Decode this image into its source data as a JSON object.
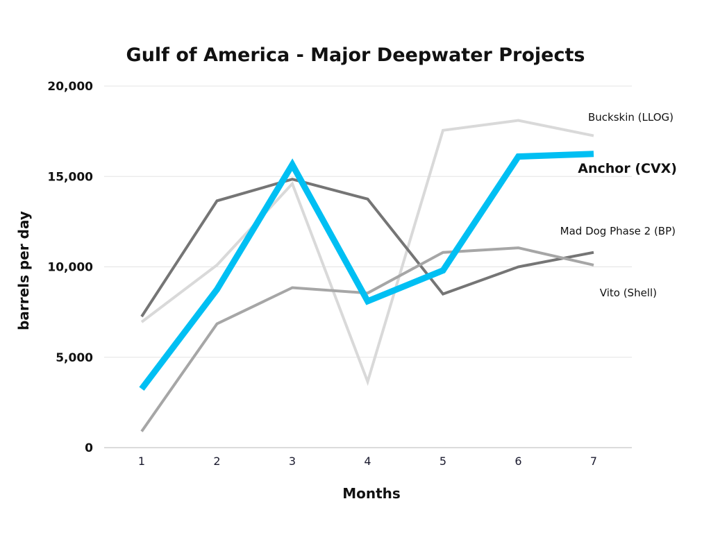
{
  "chart_data": {
    "type": "line",
    "title": "Gulf of America - Major Deepwater Projects",
    "xlabel": "Months",
    "ylabel": "barrels per day",
    "x": [
      1,
      2,
      3,
      4,
      5,
      6,
      7
    ],
    "x_tick_labels": [
      "1",
      "2",
      "3",
      "4",
      "5",
      "6",
      "7"
    ],
    "ylim": [
      0,
      20000
    ],
    "y_ticks": [
      0,
      5000,
      10000,
      15000,
      20000
    ],
    "y_tick_labels": [
      "0",
      "5,000",
      "10,000",
      "15,000",
      "20,000"
    ],
    "grid": true,
    "legend": "direct labels at line ends",
    "series": [
      {
        "name": "Buckskin (LLOG)",
        "color": "#d9d9d9",
        "emphasis": false,
        "values": [
          6950,
          10100,
          14600,
          3650,
          17550,
          18100,
          17250
        ]
      },
      {
        "name": "Mad Dog Phase 2 (BP)",
        "color": "#757575",
        "emphasis": false,
        "values": [
          7250,
          13650,
          14850,
          13750,
          8500,
          10000,
          10800
        ]
      },
      {
        "name": "Vito (Shell)",
        "color": "#a6a6a6",
        "emphasis": false,
        "values": [
          900,
          6850,
          8850,
          8550,
          10800,
          11050,
          10100
        ]
      },
      {
        "name": "Anchor (CVX)",
        "color": "#00bff3",
        "emphasis": true,
        "values": [
          3250,
          8750,
          15650,
          8100,
          9800,
          16100,
          16250
        ]
      }
    ]
  }
}
